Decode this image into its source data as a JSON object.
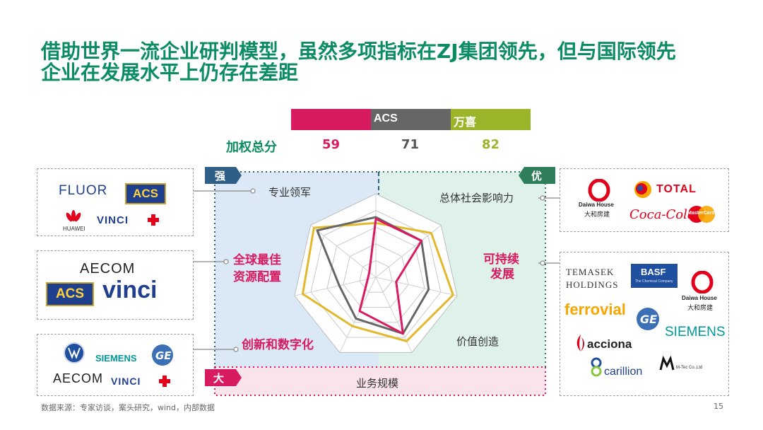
{
  "title": {
    "line1": "借助世界一流企业研判模型，虽然多项指标在ZJ集团领先，但与国际领先",
    "line2": "企业在发展水平上仍存在差距"
  },
  "colors": {
    "green": "#0b8c63",
    "zj": "#d81b60",
    "acs": "#666666",
    "wanxi": "#9bb52b",
    "radar_wanxi": "#e2b82c",
    "region_strong": "#dbe8f6",
    "region_excellent": "#dff2ea",
    "region_big": "#fbe3ec",
    "tag_strong": "#2f5f86",
    "tag_excellent": "#2e7d5b",
    "tag_big": "#d81b60"
  },
  "score_header": {
    "label": "加权总分",
    "segments": [
      {
        "name": "",
        "color": "#d81b60",
        "score": "59",
        "score_color": "#d81b60"
      },
      {
        "name": "ACS",
        "color": "#666666",
        "score": "71",
        "score_color": "#555555"
      },
      {
        "name": "万喜",
        "color": "#9bb52b",
        "score": "82",
        "score_color": "#9bb52b"
      }
    ]
  },
  "regions": {
    "strong": "强",
    "excellent": "优",
    "big": "大"
  },
  "axes": [
    {
      "label": "专业领军"
    },
    {
      "label": "总体社会影响力"
    },
    {
      "label": "可持续发展",
      "line1": "可持续",
      "line2": "发展"
    },
    {
      "label": "价值创造"
    },
    {
      "label": "业务规模"
    },
    {
      "label": "创新和数字化"
    },
    {
      "label": "全球最佳资源配置",
      "line1": "全球最佳",
      "line2": "资源配置"
    }
  ],
  "chart_data": {
    "type": "radar",
    "axes": [
      "专业领军",
      "总体社会影响力",
      "可持续发展",
      "价值创造",
      "业务规模",
      "创新和数字化",
      "全球最佳资源配置"
    ],
    "rmax": 1.0,
    "series": [
      {
        "name": "",
        "color": "#d81b60",
        "values": [
          0.7,
          0.7,
          0.25,
          0.75,
          0.45,
          0.1,
          0.1
        ]
      },
      {
        "name": "ACS",
        "color": "#666666",
        "values": [
          0.72,
          0.7,
          0.65,
          0.75,
          0.55,
          0.45,
          0.9
        ]
      },
      {
        "name": "万喜",
        "color": "#e2b82c",
        "values": [
          0.65,
          0.85,
          0.95,
          0.85,
          0.65,
          0.9,
          0.95
        ]
      }
    ]
  },
  "left_boxes": [
    {
      "brands": [
        "FLUOR",
        "ACS",
        "HUAWEI",
        "VINCI"
      ]
    },
    {
      "brands": [
        "AECOM",
        "ACS",
        "vinci"
      ]
    },
    {
      "brands": [
        "SIEMENS",
        "AECOM",
        "VINCI"
      ]
    }
  ],
  "right_boxes": [
    {
      "brands": [
        "Daiwa House",
        "大和房建",
        "TOTAL",
        "Coca-Cola",
        "MasterCard"
      ]
    },
    {
      "brands": [
        "TEMASEK",
        "HOLDINGS",
        "BASF",
        "The Chemical Company",
        "Daiwa House",
        "大和房建",
        "ferrovial",
        "SIEMENS",
        "acciona",
        "carillion",
        "M-Tec Co.,Ltd"
      ]
    }
  ],
  "footer": {
    "source": "数据来源：专家访谈，案头研究，wind，内部数据",
    "page": "15"
  }
}
